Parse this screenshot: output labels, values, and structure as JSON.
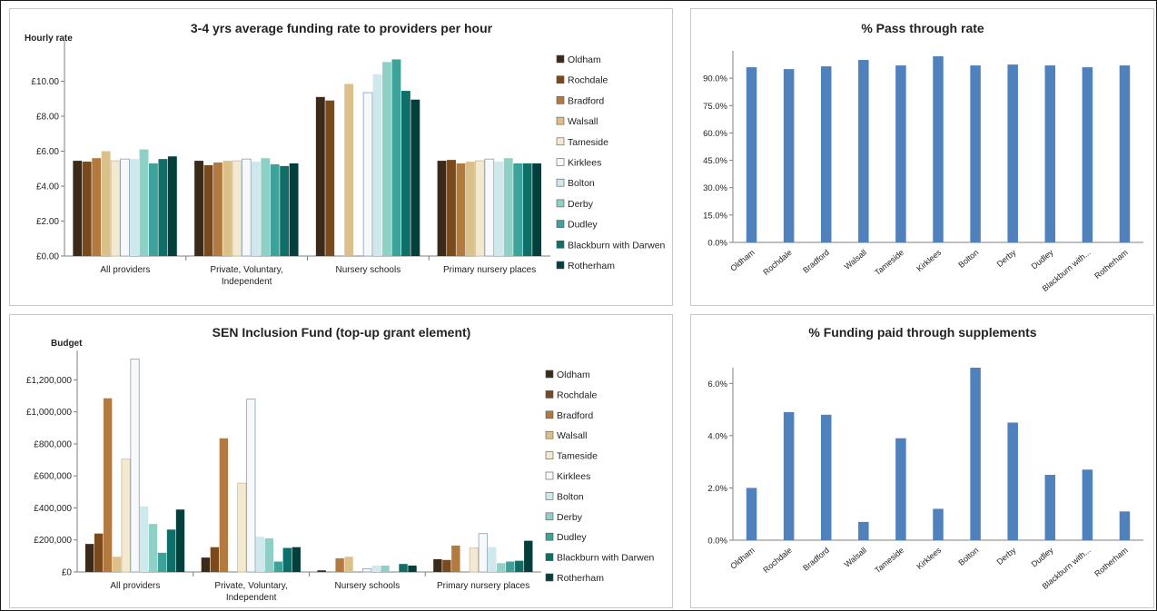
{
  "colors": {
    "series": [
      "#3b2a1a",
      "#7a4a1c",
      "#b27a3e",
      "#dcc08a",
      "#f2e9d0",
      "#f6f8fa",
      "#cfe8ec",
      "#8fd0c6",
      "#3ca29a",
      "#0f6e68",
      "#033f3d"
    ],
    "bar_blue": "#4f81bd",
    "axis": "#7f7f7f",
    "text": "#222222"
  },
  "chart_data": [
    {
      "type": "bar",
      "title": "3-4 yrs average funding rate to providers per hour",
      "ylabel": "Hourly rate",
      "xlabel": "",
      "categories": [
        [
          "All providers"
        ],
        [
          "Private, Voluntary,",
          "Independent"
        ],
        [
          "Nursery schools"
        ],
        [
          "Primary nursery places"
        ]
      ],
      "ylim": [
        0,
        12
      ],
      "yticks": [
        0,
        2,
        4,
        6,
        8,
        10
      ],
      "ytick_labels": [
        "£0.00",
        "£2.00",
        "£4.00",
        "£6.00",
        "£8.00",
        "£10.00"
      ],
      "legend_position": "right",
      "series": [
        {
          "name": "Oldham",
          "values": [
            5.45,
            5.45,
            9.1,
            5.45
          ]
        },
        {
          "name": "Rochdale",
          "values": [
            5.4,
            5.2,
            8.9,
            5.5
          ]
        },
        {
          "name": "Bradford",
          "values": [
            5.6,
            5.35,
            null,
            5.3
          ]
        },
        {
          "name": "Walsall",
          "values": [
            6.0,
            5.45,
            9.85,
            5.4
          ]
        },
        {
          "name": "Tameside",
          "values": [
            5.45,
            5.45,
            null,
            5.45
          ]
        },
        {
          "name": "Kirklees",
          "values": [
            5.55,
            5.55,
            9.35,
            5.55
          ]
        },
        {
          "name": "Bolton",
          "values": [
            5.55,
            5.4,
            10.4,
            5.4
          ]
        },
        {
          "name": "Derby",
          "values": [
            6.1,
            5.6,
            11.1,
            5.6
          ]
        },
        {
          "name": "Dudley",
          "values": [
            5.3,
            5.25,
            11.25,
            5.3
          ]
        },
        {
          "name": "Blackburn with Darwen",
          "values": [
            5.55,
            5.15,
            9.45,
            5.3
          ]
        },
        {
          "name": "Rotherham",
          "values": [
            5.7,
            5.3,
            8.95,
            5.3
          ]
        }
      ]
    },
    {
      "type": "bar",
      "title": "% Pass through rate",
      "xlabel": "",
      "ylabel": "",
      "categories": [
        "Oldham",
        "Rochdale",
        "Bradford",
        "Walsall",
        "Tameside",
        "Kirklees",
        "Bolton",
        "Derby",
        "Dudley",
        "Blackburn with...",
        "Rotherham"
      ],
      "values": [
        96.0,
        95.0,
        96.5,
        100.0,
        97.0,
        102.0,
        97.0,
        97.5,
        97.0,
        96.0,
        97.0
      ],
      "ylim": [
        0,
        105
      ],
      "yticks": [
        0,
        15,
        30,
        45,
        60,
        75,
        90
      ],
      "ytick_labels": [
        "0.0%",
        "15.0%",
        "30.0%",
        "45.0%",
        "60.0%",
        "75.0%",
        "90.0%"
      ]
    },
    {
      "type": "bar",
      "title": "SEN Inclusion Fund (top-up grant element)",
      "ylabel": "Budget",
      "xlabel": "",
      "categories": [
        [
          "All providers"
        ],
        [
          "Private, Voluntary,",
          "Independent"
        ],
        [
          "Nursery schools"
        ],
        [
          "Primary nursery places"
        ]
      ],
      "ylim": [
        0,
        1350000
      ],
      "yticks": [
        0,
        200000,
        400000,
        600000,
        800000,
        1000000,
        1200000
      ],
      "ytick_labels": [
        "£0",
        "£200,000",
        "£400,000",
        "£600,000",
        "£800,000",
        "£1,000,000",
        "£1,200,000"
      ],
      "legend_position": "right",
      "series": [
        {
          "name": "Oldham",
          "values": [
            175000,
            90000,
            10000,
            80000
          ]
        },
        {
          "name": "Rochdale",
          "values": [
            240000,
            155000,
            null,
            75000
          ]
        },
        {
          "name": "Bradford",
          "values": [
            1085000,
            835000,
            85000,
            165000
          ]
        },
        {
          "name": "Walsall",
          "values": [
            95000,
            null,
            95000,
            null
          ]
        },
        {
          "name": "Tameside",
          "values": [
            705000,
            555000,
            null,
            150000
          ]
        },
        {
          "name": "Kirklees",
          "values": [
            1330000,
            1080000,
            20000,
            240000
          ]
        },
        {
          "name": "Bolton",
          "values": [
            410000,
            220000,
            40000,
            155000
          ]
        },
        {
          "name": "Derby",
          "values": [
            300000,
            210000,
            40000,
            55000
          ]
        },
        {
          "name": "Dudley",
          "values": [
            120000,
            65000,
            null,
            65000
          ]
        },
        {
          "name": "Blackburn with Darwen",
          "values": [
            265000,
            150000,
            50000,
            70000
          ]
        },
        {
          "name": "Rotherham",
          "values": [
            390000,
            155000,
            40000,
            195000
          ]
        }
      ]
    },
    {
      "type": "bar",
      "title": "% Funding paid through supplements",
      "xlabel": "",
      "ylabel": "",
      "categories": [
        "Oldham",
        "Rochdale",
        "Bradford",
        "Walsall",
        "Tameside",
        "Kirklees",
        "Bolton",
        "Derby",
        "Dudley",
        "Blackburn with...",
        "Rotherham"
      ],
      "values": [
        2.0,
        4.9,
        4.8,
        0.7,
        3.9,
        1.2,
        6.6,
        4.5,
        2.5,
        2.7,
        1.1
      ],
      "ylim": [
        0,
        6.6
      ],
      "yticks": [
        0,
        2,
        4,
        6
      ],
      "ytick_labels": [
        "0.0%",
        "2.0%",
        "4.0%",
        "6.0%"
      ]
    }
  ]
}
